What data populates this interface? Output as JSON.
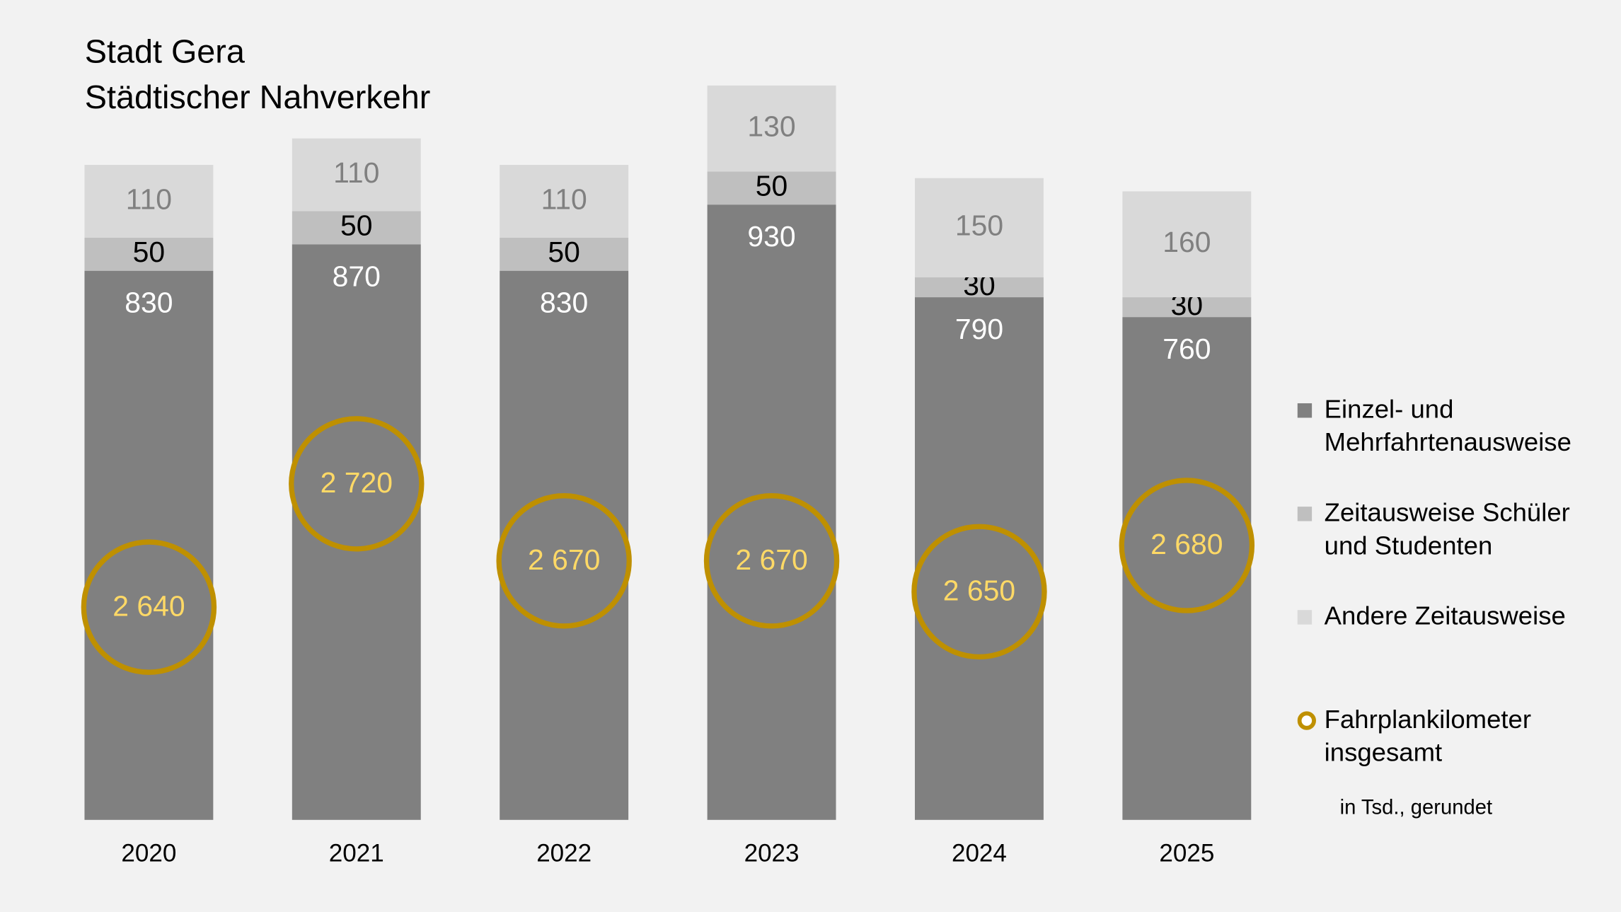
{
  "chart_data": {
    "type": "bar",
    "stacked": true,
    "title": "Stadt Gera",
    "subtitle": "Städtischer Nahverkehr",
    "note": "in Tsd., gerundet",
    "categories": [
      "2020",
      "2021",
      "2022",
      "2023",
      "2024",
      "2025"
    ],
    "ylim": [
      0,
      1200
    ],
    "y2lim": [
      2502,
      3017
    ],
    "series": [
      {
        "name": "Einzel- und Mehrfahrtenausweise",
        "color": "#808080",
        "label_color": "#ffffff",
        "values": [
          830,
          870,
          830,
          930,
          790,
          760
        ]
      },
      {
        "name": "Zeitausweise Schüler und Studenten",
        "color": "#bfbfbf",
        "label_color": "#000000",
        "values": [
          50,
          50,
          50,
          50,
          30,
          30
        ]
      },
      {
        "name": "Andere Zeitausweise",
        "color": "#d9d9d9",
        "label_color": "#808080",
        "values": [
          110,
          110,
          110,
          130,
          150,
          160
        ]
      },
      {
        "name": "Fahrplankilometer insgesamt",
        "color": "#bf9000",
        "label_color": "#ffd966",
        "axis": "y2",
        "marker": "circle",
        "values": [
          2640,
          2720,
          2670,
          2670,
          2650,
          2680
        ],
        "value_labels": [
          "2 640",
          "2 720",
          "2 670",
          "2 670",
          "2 650",
          "2 680"
        ]
      }
    ]
  }
}
